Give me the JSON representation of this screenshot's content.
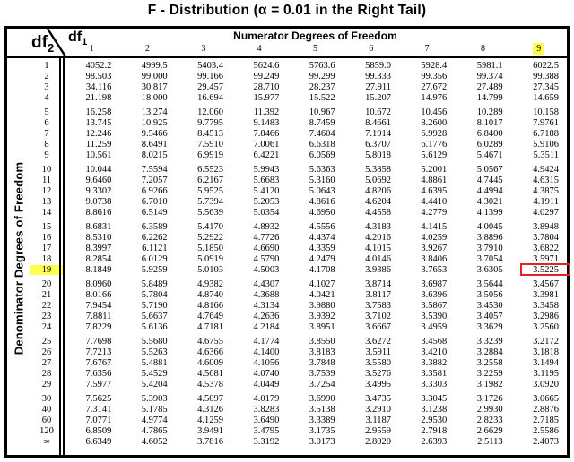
{
  "title": "F - Distribution (α = 0.01 in the Right Tail)",
  "corner": {
    "row_var": "df",
    "row_var_sub": "2",
    "col_var": "df",
    "col_var_sub": "1"
  },
  "header": {
    "group_label": "Numerator Degrees of Freedom",
    "columns": [
      "1",
      "2",
      "3",
      "4",
      "5",
      "6",
      "7",
      "8",
      "9"
    ],
    "highlighted_column": "9"
  },
  "side_label": "Denominator Degrees of Freedom",
  "highlight": {
    "row_label": "19",
    "column_label": "9",
    "cell_value": "3.5225"
  },
  "colors": {
    "highlight_yellow": "#ffff4d",
    "box_red": "#e32227"
  },
  "table": {
    "groups": [
      {
        "rows": [
          {
            "label": "1",
            "values": [
              "4052.2",
              "4999.5",
              "5403.4",
              "5624.6",
              "5763.6",
              "5859.0",
              "5928.4",
              "5981.1",
              "6022.5"
            ]
          },
          {
            "label": "2",
            "values": [
              "98.503",
              "99.000",
              "99.166",
              "99.249",
              "99.299",
              "99.333",
              "99.356",
              "99.374",
              "99.388"
            ]
          },
          {
            "label": "3",
            "values": [
              "34.116",
              "30.817",
              "29.457",
              "28.710",
              "28.237",
              "27.911",
              "27.672",
              "27.489",
              "27.345"
            ]
          },
          {
            "label": "4",
            "values": [
              "21.198",
              "18.000",
              "16.694",
              "15.977",
              "15.522",
              "15.207",
              "14.976",
              "14.799",
              "14.659"
            ]
          }
        ]
      },
      {
        "rows": [
          {
            "label": "5",
            "values": [
              "16.258",
              "13.274",
              "12.060",
              "11.392",
              "10.967",
              "10.672",
              "10.456",
              "10.289",
              "10.158"
            ]
          },
          {
            "label": "6",
            "values": [
              "13.745",
              "10.925",
              "9.7795",
              "9.1483",
              "8.7459",
              "8.4661",
              "8.2600",
              "8.1017",
              "7.9761"
            ]
          },
          {
            "label": "7",
            "values": [
              "12.246",
              "9.5466",
              "8.4513",
              "7.8466",
              "7.4604",
              "7.1914",
              "6.9928",
              "6.8400",
              "6.7188"
            ]
          },
          {
            "label": "8",
            "values": [
              "11.259",
              "8.6491",
              "7.5910",
              "7.0061",
              "6.6318",
              "6.3707",
              "6.1776",
              "6.0289",
              "5.9106"
            ]
          },
          {
            "label": "9",
            "values": [
              "10.561",
              "8.0215",
              "6.9919",
              "6.4221",
              "6.0569",
              "5.8018",
              "5.6129",
              "5.4671",
              "5.3511"
            ]
          }
        ]
      },
      {
        "rows": [
          {
            "label": "10",
            "values": [
              "10.044",
              "7.5594",
              "6.5523",
              "5.9943",
              "5.6363",
              "5.3858",
              "5.2001",
              "5.0567",
              "4.9424"
            ]
          },
          {
            "label": "11",
            "values": [
              "9.6460",
              "7.2057",
              "6.2167",
              "5.6683",
              "5.3160",
              "5.0692",
              "4.8861",
              "4.7445",
              "4.6315"
            ]
          },
          {
            "label": "12",
            "values": [
              "9.3302",
              "6.9266",
              "5.9525",
              "5.4120",
              "5.0643",
              "4.8206",
              "4.6395",
              "4.4994",
              "4.3875"
            ]
          },
          {
            "label": "13",
            "values": [
              "9.0738",
              "6.7010",
              "5.7394",
              "5.2053",
              "4.8616",
              "4.6204",
              "4.4410",
              "4.3021",
              "4.1911"
            ]
          },
          {
            "label": "14",
            "values": [
              "8.8616",
              "6.5149",
              "5.5639",
              "5.0354",
              "4.6950",
              "4.4558",
              "4.2779",
              "4.1399",
              "4.0297"
            ]
          }
        ]
      },
      {
        "rows": [
          {
            "label": "15",
            "values": [
              "8.6831",
              "6.3589",
              "5.4170",
              "4.8932",
              "4.5556",
              "4.3183",
              "4.1415",
              "4.0045",
              "3.8948"
            ]
          },
          {
            "label": "16",
            "values": [
              "8.5310",
              "6.2262",
              "5.2922",
              "4.7726",
              "4.4374",
              "4.2016",
              "4.0259",
              "3.8896",
              "3.7804"
            ]
          },
          {
            "label": "17",
            "values": [
              "8.3997",
              "6.1121",
              "5.1850",
              "4.6690",
              "4.3359",
              "4.1015",
              "3.9267",
              "3.7910",
              "3.6822"
            ]
          },
          {
            "label": "18",
            "values": [
              "8.2854",
              "6.0129",
              "5.0919",
              "4.5790",
              "4.2479",
              "4.0146",
              "3.8406",
              "3.7054",
              "3.5971"
            ]
          },
          {
            "label": "19",
            "values": [
              "8.1849",
              "5.9259",
              "5.0103",
              "4.5003",
              "4.1708",
              "3.9386",
              "3.7653",
              "3.6305",
              "3.5225"
            ]
          }
        ]
      },
      {
        "rows": [
          {
            "label": "20",
            "values": [
              "8.0960",
              "5.8489",
              "4.9382",
              "4.4307",
              "4.1027",
              "3.8714",
              "3.6987",
              "3.5644",
              "3.4567"
            ]
          },
          {
            "label": "21",
            "values": [
              "8.0166",
              "5.7804",
              "4.8740",
              "4.3688",
              "4.0421",
              "3.8117",
              "3.6396",
              "3.5056",
              "3.3981"
            ]
          },
          {
            "label": "22",
            "values": [
              "7.9454",
              "5.7190",
              "4.8166",
              "4.3134",
              "3.9880",
              "3.7583",
              "3.5867",
              "3.4530",
              "3.3458"
            ]
          },
          {
            "label": "23",
            "values": [
              "7.8811",
              "5.6637",
              "4.7649",
              "4.2636",
              "3.9392",
              "3.7102",
              "3.5390",
              "3.4057",
              "3.2986"
            ]
          },
          {
            "label": "24",
            "values": [
              "7.8229",
              "5.6136",
              "4.7181",
              "4.2184",
              "3.8951",
              "3.6667",
              "3.4959",
              "3.3629",
              "3.2560"
            ]
          }
        ]
      },
      {
        "rows": [
          {
            "label": "25",
            "values": [
              "7.7698",
              "5.5680",
              "4.6755",
              "4.1774",
              "3.8550",
              "3.6272",
              "3.4568",
              "3.3239",
              "3.2172"
            ]
          },
          {
            "label": "26",
            "values": [
              "7.7213",
              "5.5263",
              "4.6366",
              "4.1400",
              "3.8183",
              "3.5911",
              "3.4210",
              "3.2884",
              "3.1818"
            ]
          },
          {
            "label": "27",
            "values": [
              "7.6767",
              "5.4881",
              "4.6009",
              "4.1056",
              "3.7848",
              "3.5580",
              "3.3882",
              "3.2558",
              "3.1494"
            ]
          },
          {
            "label": "28",
            "values": [
              "7.6356",
              "5.4529",
              "4.5681",
              "4.0740",
              "3.7539",
              "3.5276",
              "3.3581",
              "3.2259",
              "3.1195"
            ]
          },
          {
            "label": "29",
            "values": [
              "7.5977",
              "5.4204",
              "4.5378",
              "4.0449",
              "3.7254",
              "3.4995",
              "3.3303",
              "3.1982",
              "3.0920"
            ]
          }
        ]
      },
      {
        "rows": [
          {
            "label": "30",
            "values": [
              "7.5625",
              "5.3903",
              "4.5097",
              "4.0179",
              "3.6990",
              "3.4735",
              "3.3045",
              "3.1726",
              "3.0665"
            ]
          },
          {
            "label": "40",
            "values": [
              "7.3141",
              "5.1785",
              "4.3126",
              "3.8283",
              "3.5138",
              "3.2910",
              "3.1238",
              "2.9930",
              "2.8876"
            ]
          },
          {
            "label": "60",
            "values": [
              "7.0771",
              "4.9774",
              "4.1259",
              "3.6490",
              "3.3389",
              "3.1187",
              "2.9530",
              "2.8233",
              "2.7185"
            ]
          },
          {
            "label": "120",
            "values": [
              "6.8509",
              "4.7865",
              "3.9491",
              "3.4795",
              "3.1735",
              "2.9559",
              "2.7918",
              "2.6629",
              "2.5586"
            ]
          },
          {
            "label": "∞",
            "values": [
              "6.6349",
              "4.6052",
              "3.7816",
              "3.3192",
              "3.0173",
              "2.8020",
              "2.6393",
              "2.5113",
              "2.4073"
            ]
          }
        ]
      }
    ]
  }
}
